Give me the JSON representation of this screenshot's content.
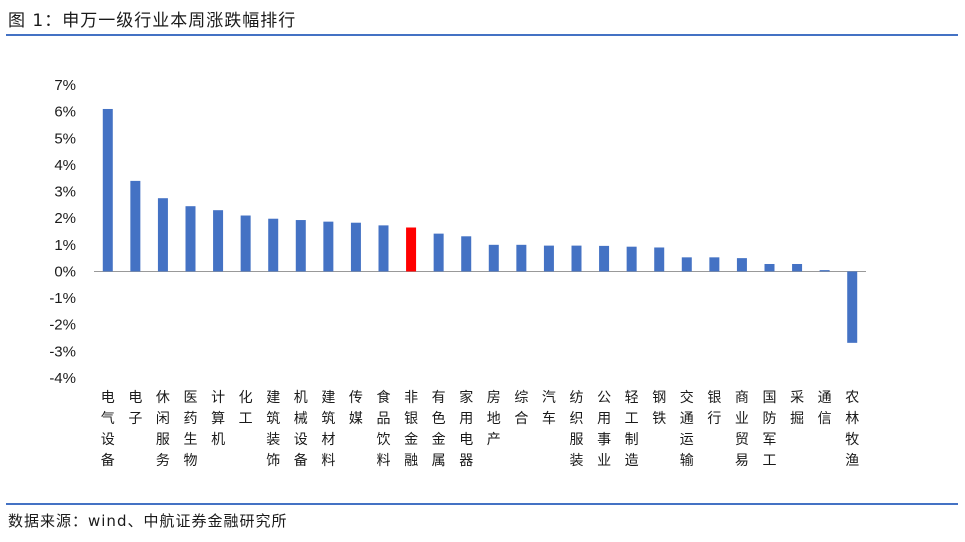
{
  "title": "图 1：申万一级行业本周涨跌幅排行",
  "source": "数据来源：wind、中航证券金融研究所",
  "colors": {
    "bar": "#4472c4",
    "highlight": "#ff0000",
    "rule": "#4472c4",
    "axis": "#999999"
  },
  "chart_data": {
    "type": "bar",
    "title": "",
    "xlabel": "",
    "ylabel": "",
    "ylim": [
      -4,
      7
    ],
    "yticks": [
      "7%",
      "6%",
      "5%",
      "4%",
      "3%",
      "2%",
      "1%",
      "0%",
      "-1%",
      "-2%",
      "-3%",
      "-4%"
    ],
    "grid": false,
    "legend": "none",
    "highlight": "非银金融",
    "categories": [
      "电气设备",
      "电子",
      "休闲服务",
      "医药生物",
      "计算机",
      "化工",
      "建筑装饰",
      "机械设备",
      "建筑材料",
      "传媒",
      "食品饮料",
      "非银金融",
      "有色金属",
      "家用电器",
      "房地产",
      "综合",
      "汽车",
      "纺织服装",
      "公用事业",
      "轻工制造",
      "钢铁",
      "交通运输",
      "银行",
      "商业贸易",
      "国防军工",
      "采掘",
      "通信",
      "农林牧渔"
    ],
    "values": [
      6.1,
      3.4,
      2.75,
      2.45,
      2.3,
      2.1,
      1.98,
      1.93,
      1.87,
      1.83,
      1.73,
      1.65,
      1.42,
      1.32,
      1.0,
      1.0,
      0.97,
      0.97,
      0.96,
      0.93,
      0.9,
      0.53,
      0.53,
      0.5,
      0.28,
      0.28,
      0.05,
      -2.68
    ]
  }
}
